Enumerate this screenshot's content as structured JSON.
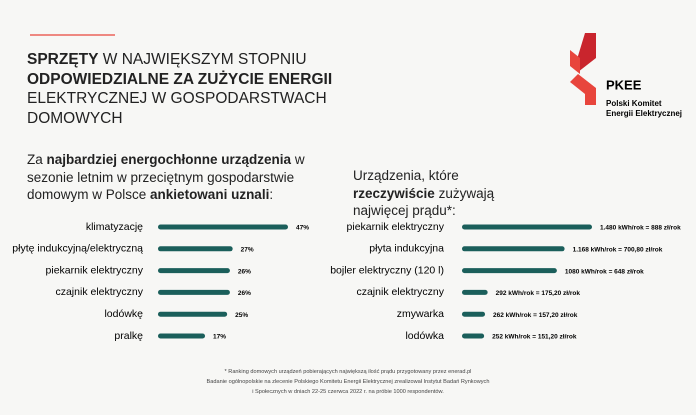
{
  "title_parts": [
    "SPRZĘTY",
    " W NAJWIĘKSZYM STOPNIU",
    "ODPOWIEDZIALNE ZA ZUŻYCIE ENERGII",
    "ELEKTRYCZNEJ W GOSPODARSTWACH DOMOWYCH"
  ],
  "logo": {
    "name": "PKEE",
    "lines": [
      "Polski Komitet",
      "Energii Elektrycznej"
    ]
  },
  "chart_data": [
    {
      "type": "bar",
      "orientation": "horizontal",
      "subtitle_parts": [
        "Za ",
        "najbardziej energochłonne urządzenia",
        " w sezonie letnim w przeciętnym gospodarstwie domowym w Polsce ",
        "ankietowani uznali",
        ":"
      ],
      "categories": [
        "klimatyzację",
        "płytę indukcyjną/elektryczną",
        "piekarnik elektryczny",
        "czajnik elektryczny",
        "lodówkę",
        "pralkę"
      ],
      "values": [
        47,
        27,
        26,
        26,
        25,
        17
      ],
      "value_labels": [
        "47%",
        "27%",
        "26%",
        "26%",
        "25%",
        "17%"
      ],
      "color": "#1b5f5b"
    },
    {
      "type": "bar",
      "orientation": "horizontal",
      "subtitle_parts": [
        "Urządzenia, które ",
        "rzeczywiście",
        " zużywają najwięcej prądu*:"
      ],
      "categories": [
        "piekarnik elektryczny",
        "płyta indukcyjna",
        "bojler elektryczny (120 l)",
        "czajnik elektryczny",
        "zmywarka",
        "lodówka"
      ],
      "values": [
        1480,
        1168,
        1080,
        292,
        262,
        252
      ],
      "value_labels": [
        "1.480 kWh/rok = 888 zł/rok",
        "1.168 kWh/rok = 700,80 zł/rok",
        "1080 kWh/rok = 648 zł/rok",
        "292 kWh/rok = 175,20 zł/rok",
        "262 kWh/rok = 157,20 zł/rok",
        "252 kWh/rok = 151,20 zł/rok"
      ],
      "color": "#1b5f5b"
    }
  ],
  "footnotes": [
    "* Ranking domowych urządzeń pobierających największą ilość prądu przygotowany przez enerad.pl",
    "Badanie ogólnopolskie na zlecenie Polskiego Komitetu Energii Elektrycznej zrealizował Instytut Badań Rynkowych",
    "i Społecznych w dniach 22-25 czerwca 2022 r. na próbie 1000 respondentów."
  ]
}
